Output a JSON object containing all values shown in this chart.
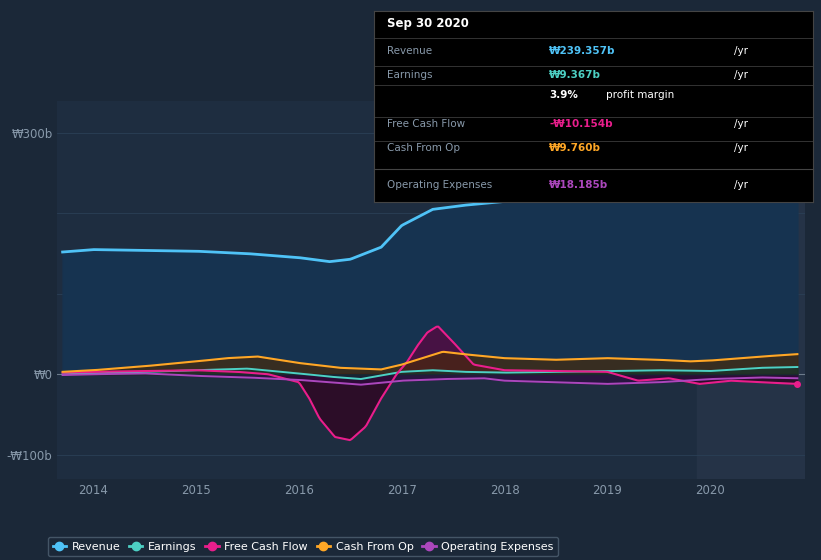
{
  "bg_color": "#1b2838",
  "plot_bg_color": "#1e2d40",
  "highlight_bg_color": "#253347",
  "grid_color": "#2a3f56",
  "y_label_color": "#8899aa",
  "x_label_color": "#8899aa",
  "revenue_color": "#4fc3f7",
  "earnings_color": "#4dd0c4",
  "fcf_color": "#e91e8c",
  "cashfromop_color": "#ffa726",
  "opex_color": "#ab47bc",
  "revenue_fill": "#163350",
  "legend_items": [
    {
      "label": "Revenue",
      "color": "#4fc3f7"
    },
    {
      "label": "Earnings",
      "color": "#4dd0c4"
    },
    {
      "label": "Free Cash Flow",
      "color": "#e91e8c"
    },
    {
      "label": "Cash From Op",
      "color": "#ffa726"
    },
    {
      "label": "Operating Expenses",
      "color": "#ab47bc"
    }
  ],
  "tooltip": {
    "date": "Sep 30 2020",
    "revenue_label": "Revenue",
    "revenue_value": "₩239.357b",
    "revenue_color": "#4fc3f7",
    "earnings_label": "Earnings",
    "earnings_value": "₩9.367b",
    "earnings_color": "#4dd0c4",
    "fcf_label": "Free Cash Flow",
    "fcf_value": "-₩10.154b",
    "fcf_color": "#e91e8c",
    "cashop_label": "Cash From Op",
    "cashop_value": "₩9.760b",
    "cashop_color": "#ffa726",
    "opex_label": "Operating Expenses",
    "opex_value": "₩18.185b",
    "opex_color": "#ab47bc"
  },
  "revenue_knots": {
    "x": [
      2013.7,
      2014.0,
      2014.5,
      2015.0,
      2015.5,
      2016.0,
      2016.3,
      2016.5,
      2016.8,
      2017.0,
      2017.3,
      2017.6,
      2018.0,
      2018.5,
      2019.0,
      2019.2,
      2019.5,
      2019.8,
      2020.0,
      2020.3,
      2020.6,
      2020.85
    ],
    "y": [
      152,
      155,
      154,
      153,
      150,
      145,
      140,
      143,
      158,
      185,
      205,
      210,
      215,
      218,
      235,
      250,
      262,
      268,
      266,
      260,
      255,
      240
    ]
  },
  "earnings_knots": {
    "x": [
      2013.7,
      2014.0,
      2014.5,
      2015.0,
      2015.5,
      2016.0,
      2016.3,
      2016.6,
      2017.0,
      2017.3,
      2017.6,
      2018.0,
      2018.5,
      2019.0,
      2019.5,
      2020.0,
      2020.5,
      2020.85
    ],
    "y": [
      0,
      1,
      3,
      5,
      7,
      1,
      -3,
      -6,
      3,
      5,
      3,
      2,
      3,
      4,
      5,
      4,
      8,
      9
    ]
  },
  "fcf_knots": {
    "x": [
      2013.7,
      2014.0,
      2014.5,
      2015.0,
      2015.4,
      2015.7,
      2016.0,
      2016.1,
      2016.2,
      2016.35,
      2016.5,
      2016.65,
      2016.8,
      2016.95,
      2017.05,
      2017.15,
      2017.25,
      2017.35,
      2017.5,
      2017.7,
      2018.0,
      2018.5,
      2019.0,
      2019.3,
      2019.6,
      2019.9,
      2020.2,
      2020.5,
      2020.85
    ],
    "y": [
      2,
      3,
      4,
      5,
      3,
      0,
      -10,
      -30,
      -55,
      -78,
      -82,
      -65,
      -30,
      0,
      15,
      35,
      52,
      60,
      40,
      12,
      5,
      4,
      3,
      -8,
      -5,
      -12,
      -8,
      -10,
      -12
    ]
  },
  "cashop_knots": {
    "x": [
      2013.7,
      2014.0,
      2014.5,
      2015.0,
      2015.3,
      2015.6,
      2016.0,
      2016.4,
      2016.8,
      2017.0,
      2017.2,
      2017.4,
      2017.6,
      2018.0,
      2018.5,
      2019.0,
      2019.5,
      2019.8,
      2020.0,
      2020.5,
      2020.85
    ],
    "y": [
      3,
      5,
      10,
      16,
      20,
      22,
      14,
      8,
      6,
      12,
      20,
      28,
      25,
      20,
      18,
      20,
      18,
      16,
      17,
      22,
      25
    ]
  },
  "opex_knots": {
    "x": [
      2013.7,
      2014.0,
      2014.5,
      2015.0,
      2015.5,
      2016.0,
      2016.3,
      2016.6,
      2017.0,
      2017.4,
      2017.8,
      2018.0,
      2018.5,
      2019.0,
      2019.5,
      2020.0,
      2020.5,
      2020.85
    ],
    "y": [
      -1,
      0,
      1,
      -2,
      -4,
      -7,
      -10,
      -13,
      -8,
      -6,
      -5,
      -8,
      -10,
      -12,
      -10,
      -6,
      -4,
      -5
    ]
  }
}
